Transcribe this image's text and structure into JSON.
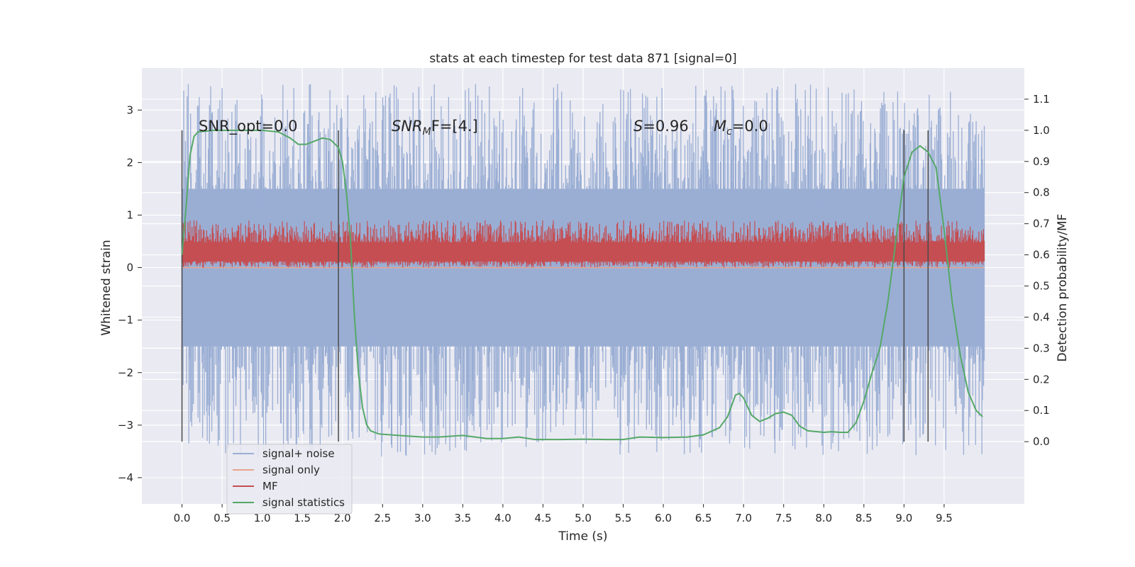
{
  "chart_data": {
    "type": "line",
    "title": "stats at each timestep for test data 871 [signal=0]",
    "xlabel": "Time (s)",
    "ylabel_left": "Whitened strain",
    "ylabel_right": "Detection probability/MF",
    "x_ticks": [
      "0.0",
      "0.5",
      "1.0",
      "1.5",
      "2.0",
      "2.5",
      "3.0",
      "3.5",
      "4.0",
      "4.5",
      "5.0",
      "5.5",
      "6.0",
      "6.5",
      "7.0",
      "7.5",
      "8.0",
      "8.5",
      "9.0",
      "9.5"
    ],
    "y_left_ticks": [
      "3",
      "2",
      "1",
      "0",
      "−1",
      "−2",
      "−3",
      "−4"
    ],
    "y_right_ticks": [
      "1.1",
      "1.0",
      "0.9",
      "0.8",
      "0.7",
      "0.6",
      "0.5",
      "0.4",
      "0.3",
      "0.2",
      "0.1",
      "0.0"
    ],
    "xlim": [
      -0.5,
      10.5
    ],
    "ylim_left": [
      -4.5,
      3.8
    ],
    "ylim_right": [
      -0.2,
      1.2
    ],
    "grid": true,
    "legend_position": "lower-left",
    "annotations": {
      "snr_opt": "SNR_opt=0.0",
      "snr_mf_prefix": "SNR",
      "snr_mf_sub": "M",
      "snr_mf_suffix": "F=[4.]",
      "s_label": "S",
      "s_value": "=0.96",
      "mc_label": "M",
      "mc_sub": "c",
      "mc_value": "=0.0"
    },
    "vlines_x": [
      0.0,
      1.95,
      9.0,
      9.3
    ],
    "series": [
      {
        "name": "signal+ noise",
        "color": "#9aaed4",
        "band_upper": [
          [
            0.0,
            1.5
          ],
          [
            1.0,
            1.5
          ],
          [
            2.0,
            1.5
          ],
          [
            3.0,
            1.5
          ],
          [
            4.0,
            1.5
          ],
          [
            5.0,
            1.5
          ],
          [
            6.0,
            1.5
          ],
          [
            7.0,
            1.5
          ],
          [
            8.0,
            1.5
          ],
          [
            9.0,
            1.5
          ],
          [
            10.0,
            1.5
          ]
        ],
        "band_lower": [
          [
            0.0,
            -1.5
          ],
          [
            10.0,
            -1.5
          ]
        ],
        "peak_max": 3.5,
        "trough_min": -3.6
      },
      {
        "name": "signal only",
        "color": "#e8a58c",
        "points": [
          [
            0.0,
            0.0
          ],
          [
            10.0,
            0.0
          ]
        ]
      },
      {
        "name": "MF",
        "color": "#c44e52",
        "band_center": 0.3,
        "band_halfwidth": 0.18,
        "peak_max": 0.9,
        "trough_min": 0.0
      },
      {
        "name": "signal statistics",
        "color": "#55a868",
        "points": [
          [
            0.0,
            0.6
          ],
          [
            0.05,
            0.75
          ],
          [
            0.1,
            0.92
          ],
          [
            0.15,
            0.98
          ],
          [
            0.2,
            0.995
          ],
          [
            0.4,
            1.0
          ],
          [
            0.7,
            1.0
          ],
          [
            1.0,
            1.0
          ],
          [
            1.2,
            0.995
          ],
          [
            1.35,
            0.975
          ],
          [
            1.45,
            0.955
          ],
          [
            1.55,
            0.955
          ],
          [
            1.65,
            0.965
          ],
          [
            1.75,
            0.975
          ],
          [
            1.85,
            0.97
          ],
          [
            1.95,
            0.945
          ],
          [
            2.0,
            0.9
          ],
          [
            2.05,
            0.8
          ],
          [
            2.1,
            0.65
          ],
          [
            2.15,
            0.4
          ],
          [
            2.2,
            0.22
          ],
          [
            2.25,
            0.11
          ],
          [
            2.3,
            0.055
          ],
          [
            2.35,
            0.035
          ],
          [
            2.45,
            0.025
          ],
          [
            2.7,
            0.02
          ],
          [
            3.0,
            0.015
          ],
          [
            3.2,
            0.015
          ],
          [
            3.5,
            0.02
          ],
          [
            3.8,
            0.01
          ],
          [
            4.0,
            0.01
          ],
          [
            4.2,
            0.015
          ],
          [
            4.4,
            0.007
          ],
          [
            4.7,
            0.007
          ],
          [
            5.0,
            0.008
          ],
          [
            5.3,
            0.007
          ],
          [
            5.5,
            0.007
          ],
          [
            5.7,
            0.015
          ],
          [
            6.0,
            0.013
          ],
          [
            6.3,
            0.015
          ],
          [
            6.5,
            0.022
          ],
          [
            6.7,
            0.045
          ],
          [
            6.8,
            0.08
          ],
          [
            6.9,
            0.15
          ],
          [
            6.95,
            0.155
          ],
          [
            7.0,
            0.14
          ],
          [
            7.1,
            0.085
          ],
          [
            7.2,
            0.065
          ],
          [
            7.3,
            0.075
          ],
          [
            7.4,
            0.09
          ],
          [
            7.5,
            0.095
          ],
          [
            7.6,
            0.085
          ],
          [
            7.7,
            0.05
          ],
          [
            7.8,
            0.035
          ],
          [
            8.0,
            0.03
          ],
          [
            8.1,
            0.032
          ],
          [
            8.2,
            0.03
          ],
          [
            8.3,
            0.03
          ],
          [
            8.4,
            0.06
          ],
          [
            8.5,
            0.13
          ],
          [
            8.6,
            0.22
          ],
          [
            8.7,
            0.3
          ],
          [
            8.8,
            0.45
          ],
          [
            8.9,
            0.65
          ],
          [
            9.0,
            0.85
          ],
          [
            9.1,
            0.93
          ],
          [
            9.2,
            0.95
          ],
          [
            9.3,
            0.93
          ],
          [
            9.4,
            0.88
          ],
          [
            9.5,
            0.68
          ],
          [
            9.6,
            0.45
          ],
          [
            9.7,
            0.28
          ],
          [
            9.8,
            0.16
          ],
          [
            9.9,
            0.1
          ],
          [
            9.98,
            0.08
          ]
        ]
      }
    ]
  }
}
